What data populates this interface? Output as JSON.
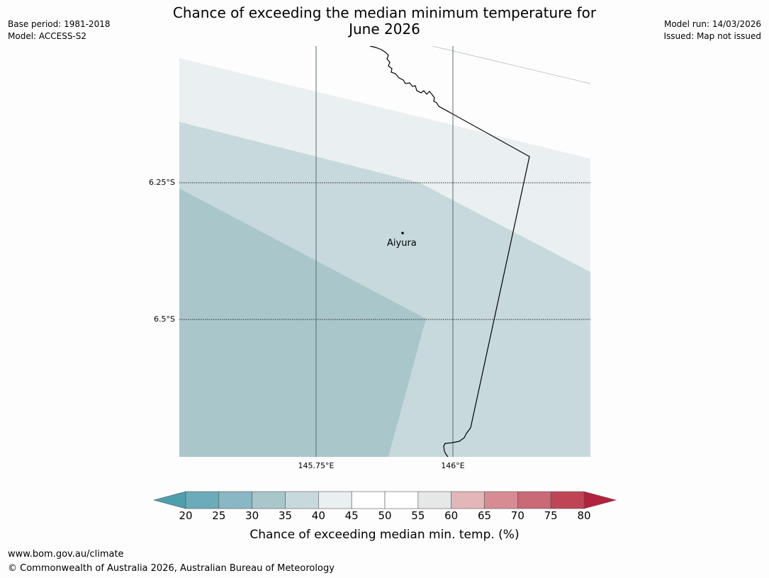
{
  "header": {
    "title_line1": "Chance of exceeding the median minimum temperature for",
    "title_line2": "June 2026",
    "base_period": "Base period: 1981-2018",
    "model": "Model: ACCESS-S2",
    "model_run": "Model run: 14/03/2026",
    "issued": "Issued: Map not issued"
  },
  "map": {
    "place_name": "Aiyura",
    "lat_labels": [
      "6.25°S",
      "6.5°S"
    ],
    "lon_labels": [
      "145.75°E",
      "146°E"
    ],
    "zone_colors": {
      "30-35": "#a9c6cb",
      "35-40": "#c7d9dd",
      "40-45": "#eaf0f2"
    }
  },
  "colorbar": {
    "ticks": [
      "20",
      "25",
      "30",
      "35",
      "40",
      "45",
      "50",
      "55",
      "60",
      "65",
      "70",
      "75",
      "80"
    ],
    "label": "Chance of exceeding median min. temp. (%)",
    "colors": {
      "below": "#4e9fae",
      "segments": [
        "#6cabb9",
        "#89b8c4",
        "#a9c6cb",
        "#c7d9dd",
        "#eaf0f2",
        "#ffffff",
        "#ffffff",
        "#e5e8e7",
        "#e3b6ba",
        "#d78c94",
        "#c96a76",
        "#bf4556"
      ],
      "above": "#b0223d"
    }
  },
  "footer": {
    "url": "www.bom.gov.au/climate",
    "copyright": "© Commonwealth of Australia 2026, Australian Bureau of Meteorology"
  }
}
